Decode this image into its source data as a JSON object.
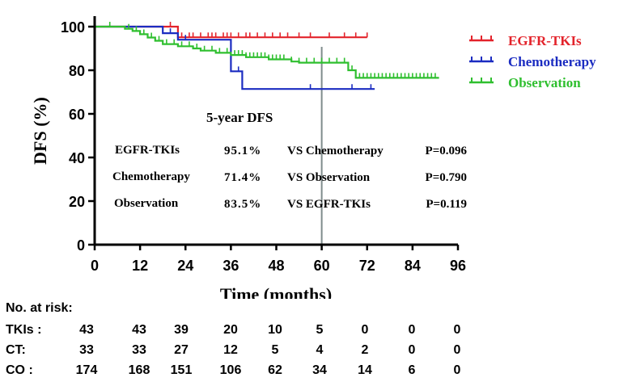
{
  "chart_data": {
    "type": "line",
    "xlabel": "Time (months)",
    "ylabel": "DFS (%)",
    "xlim": [
      0,
      96
    ],
    "ylim": [
      0,
      100
    ],
    "xticks": [
      "0",
      "12",
      "24",
      "36",
      "48",
      "60",
      "72",
      "84",
      "96"
    ],
    "yticks": [
      "0",
      "20",
      "40",
      "60",
      "80",
      "100"
    ],
    "reference_line_x": 60,
    "grid": false,
    "legend_position": "top-right",
    "series": [
      {
        "name": "EGFR-TKIs",
        "color": "#e3232b",
        "steps": [
          [
            0,
            100
          ],
          [
            22,
            100
          ],
          [
            22,
            95.1
          ],
          [
            72,
            95.1
          ]
        ],
        "censor_x": [
          20,
          23,
          25,
          26,
          28,
          30,
          31,
          32,
          34,
          35,
          36,
          38,
          40,
          41,
          43,
          45,
          47,
          49,
          51,
          54,
          57,
          62,
          66,
          69,
          72
        ]
      },
      {
        "name": "Chemotherapy",
        "color": "#1b2cc1",
        "steps": [
          [
            0,
            100
          ],
          [
            18,
            100
          ],
          [
            18,
            97
          ],
          [
            22,
            97
          ],
          [
            22,
            94
          ],
          [
            36,
            94
          ],
          [
            36,
            79.5
          ],
          [
            39,
            79.5
          ],
          [
            39,
            71.4
          ],
          [
            74,
            71.4
          ]
        ],
        "censor_x": [
          20,
          24,
          38,
          57,
          68,
          73
        ]
      },
      {
        "name": "Observation",
        "color": "#2fbf2f",
        "steps": [
          [
            0,
            100
          ],
          [
            8,
            100
          ],
          [
            8,
            99
          ],
          [
            10,
            99
          ],
          [
            10,
            98
          ],
          [
            12,
            98
          ],
          [
            12,
            96.5
          ],
          [
            14,
            96.5
          ],
          [
            14,
            95
          ],
          [
            16,
            95
          ],
          [
            16,
            93.5
          ],
          [
            18,
            93.5
          ],
          [
            18,
            92
          ],
          [
            22,
            92
          ],
          [
            22,
            91
          ],
          [
            26,
            91
          ],
          [
            26,
            90
          ],
          [
            28,
            90
          ],
          [
            28,
            89
          ],
          [
            32,
            89
          ],
          [
            32,
            88
          ],
          [
            36,
            88
          ],
          [
            36,
            87
          ],
          [
            40,
            87
          ],
          [
            40,
            86
          ],
          [
            46,
            86
          ],
          [
            46,
            85
          ],
          [
            52,
            85
          ],
          [
            52,
            84
          ],
          [
            54,
            84
          ],
          [
            54,
            83.5
          ],
          [
            67,
            83.5
          ],
          [
            67,
            80
          ],
          [
            69,
            80
          ],
          [
            69,
            76.5
          ],
          [
            91,
            76.5
          ]
        ],
        "censor_x": [
          4,
          9,
          11,
          13,
          15,
          17,
          19,
          21,
          23,
          25,
          27,
          29,
          31,
          33,
          35,
          37,
          38,
          39,
          40,
          41,
          42,
          43,
          44,
          45,
          46,
          47,
          48,
          49,
          50,
          52,
          54,
          56,
          58,
          60,
          62,
          64,
          66,
          68,
          70,
          71,
          72,
          73,
          74,
          75,
          76,
          77,
          78,
          79,
          80,
          81,
          82,
          83,
          84,
          85,
          86,
          87,
          88,
          89,
          90
        ]
      }
    ],
    "annotation": {
      "title": "5-year DFS",
      "rows": [
        {
          "group": "EGFR-TKIs",
          "rate": "95.1%",
          "comparison": "VS Chemotherapy",
          "p": "P=0.096"
        },
        {
          "group": "Chemotherapy",
          "rate": "71.4%",
          "comparison": "VS Observation",
          "p": "P=0.790"
        },
        {
          "group": "Observation",
          "rate": "83.5%",
          "comparison": "VS EGFR-TKIs",
          "p": "P=0.119"
        }
      ]
    }
  },
  "risk_table": {
    "title": "No. at risk:",
    "rows": [
      {
        "label": "TKIs :",
        "values": [
          "43",
          "43",
          "39",
          "20",
          "10",
          "5",
          "0",
          "0",
          "0"
        ]
      },
      {
        "label": "CT:",
        "values": [
          "33",
          "33",
          "27",
          "12",
          "5",
          "4",
          "2",
          "0",
          "0"
        ]
      },
      {
        "label": "CO :",
        "values": [
          "174",
          "168",
          "151",
          "106",
          "62",
          "34",
          "14",
          "6",
          "0"
        ]
      }
    ]
  }
}
